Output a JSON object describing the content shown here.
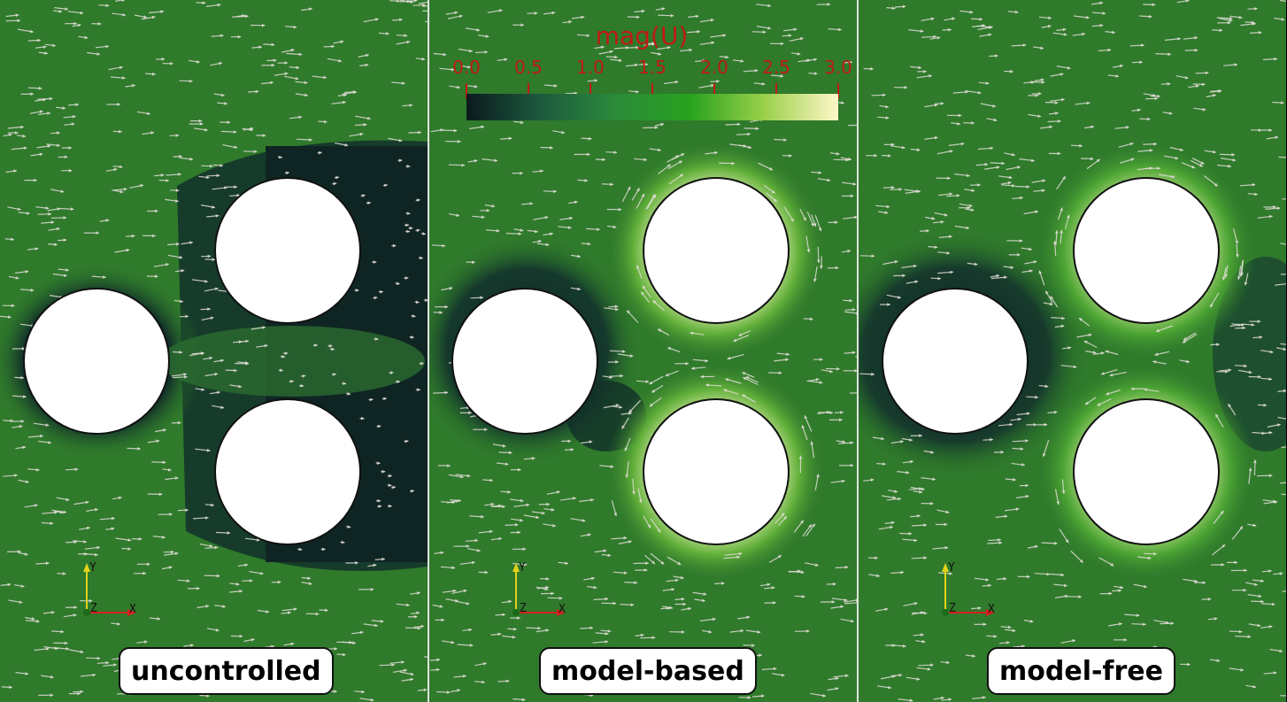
{
  "panels": [
    {
      "label": "uncontrolled",
      "mode": "uncontrolled"
    },
    {
      "label": "model-based",
      "mode": "controlled"
    },
    {
      "label": "model-free",
      "mode": "controlled"
    }
  ],
  "colorbar": {
    "title": "mag(U)",
    "ticks": [
      "0.0",
      "0.5",
      "1.0",
      "1.5",
      "2.0",
      "2.5",
      "3.0"
    ],
    "tick_values": [
      0.0,
      0.5,
      1.0,
      1.5,
      2.0,
      2.5,
      3.0
    ],
    "range": [
      0.0,
      3.0
    ],
    "colors": [
      "#0b1a1e",
      "#1d5a3e",
      "#2b8a3a",
      "#27a21e",
      "#9ad04a",
      "#fff7c8"
    ]
  },
  "axes_triad": {
    "y_label": "Y",
    "z_label": "Z",
    "x_label": "X"
  },
  "colors": {
    "field_base": "#2f7a2b",
    "wake_dark": "#0f2523",
    "arrow": "#e0dcd6",
    "label_text": "#c01a14"
  }
}
